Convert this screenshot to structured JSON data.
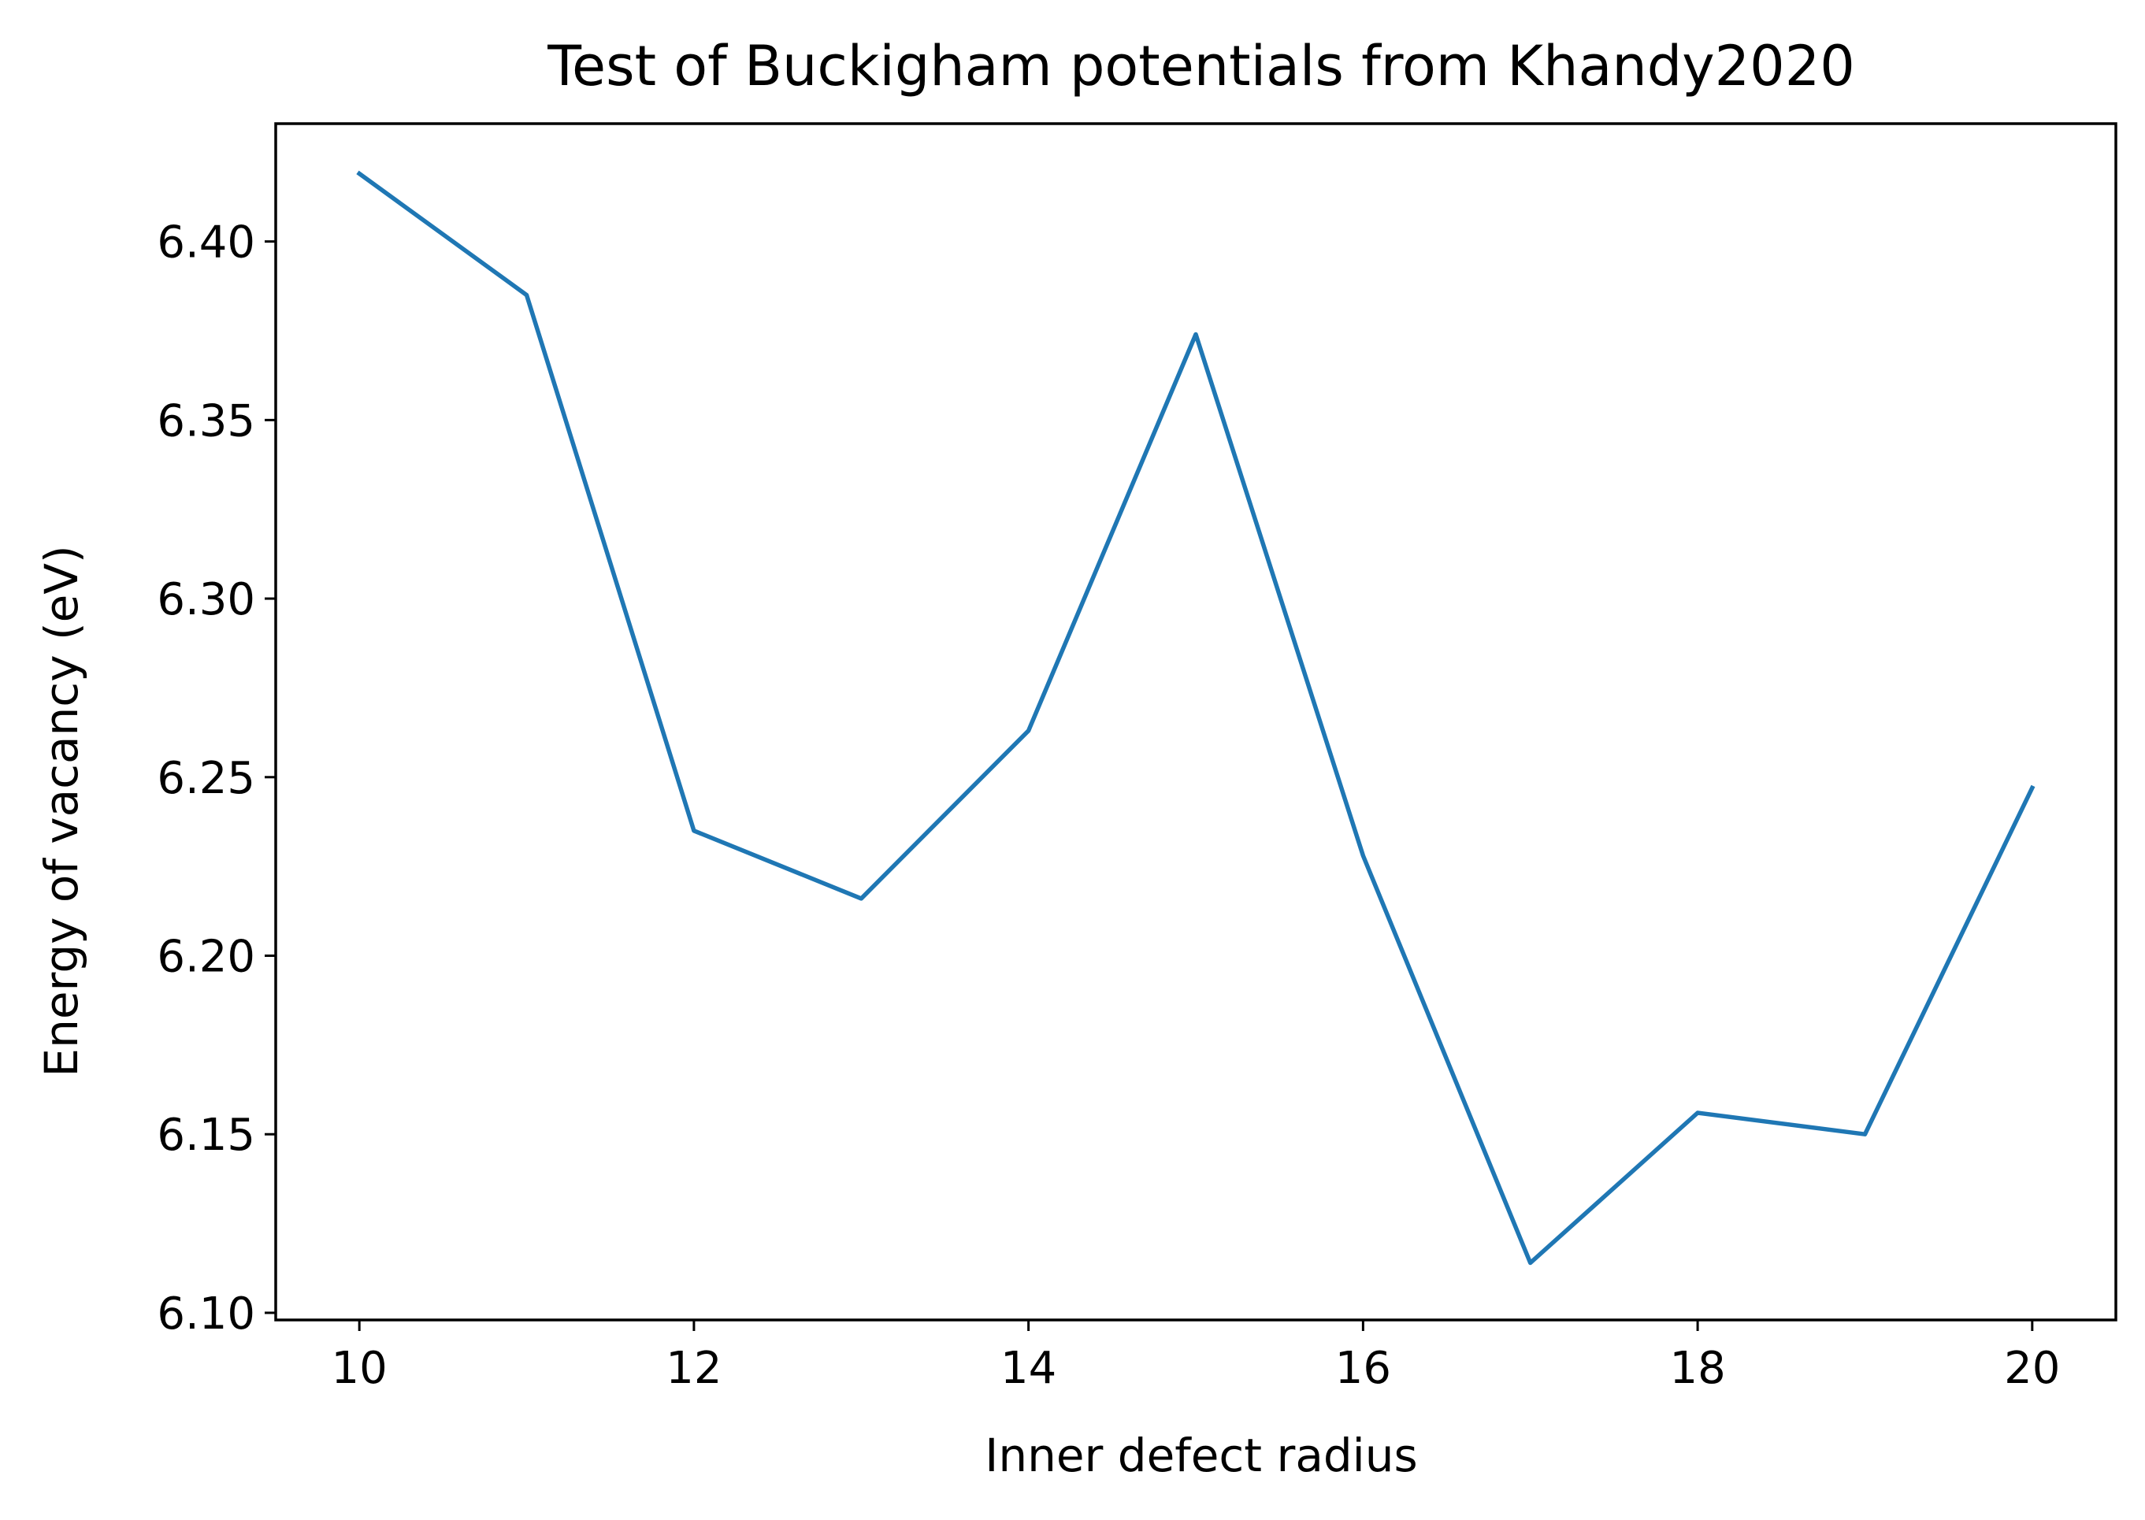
{
  "chart_data": {
    "type": "line",
    "title": "Test of Buckigham potentials from Khandy2020",
    "xlabel": "Inner defect radius",
    "ylabel": "Energy of vacancy (eV)",
    "xlim": [
      9.5,
      20.5
    ],
    "ylim": [
      6.098,
      6.433
    ],
    "x_ticks": [
      10,
      12,
      14,
      16,
      18,
      20
    ],
    "x_tick_labels": [
      "10",
      "12",
      "14",
      "16",
      "18",
      "20"
    ],
    "y_ticks": [
      6.1,
      6.15,
      6.2,
      6.25,
      6.3,
      6.35,
      6.4
    ],
    "y_tick_labels": [
      "6.10",
      "6.15",
      "6.20",
      "6.25",
      "6.30",
      "6.35",
      "6.40"
    ],
    "grid": false,
    "series": [
      {
        "x": [
          10,
          11,
          12,
          13,
          14,
          15,
          16,
          17,
          18,
          19,
          20
        ],
        "y": [
          6.419,
          6.385,
          6.235,
          6.216,
          6.263,
          6.374,
          6.228,
          6.114,
          6.156,
          6.15,
          6.247
        ],
        "color": "#1f77b4"
      }
    ]
  }
}
